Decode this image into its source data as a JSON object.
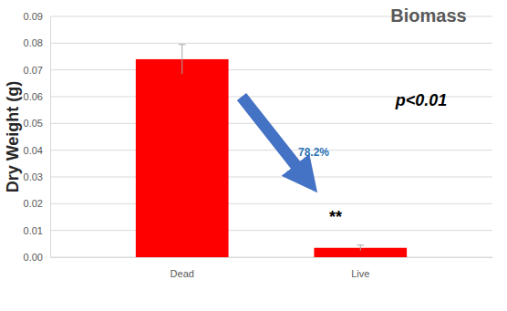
{
  "chart_data": {
    "type": "bar",
    "title": "Biomass",
    "y_label": "Dry Weight (g)",
    "categories": [
      "Dead",
      "Live"
    ],
    "values": [
      0.074,
      0.0035
    ],
    "errors": [
      0.0055,
      0.001
    ],
    "color": "#ff0000",
    "ylim": [
      0,
      0.09
    ],
    "yticks": [
      {
        "value": 0,
        "label": "0.00"
      },
      {
        "value": 0.01,
        "label": "0.01"
      },
      {
        "value": 0.02,
        "label": "0.02"
      },
      {
        "value": 0.03,
        "label": "0.03"
      },
      {
        "value": 0.04,
        "label": "0.04"
      },
      {
        "value": 0.05,
        "label": "0.05"
      },
      {
        "value": 0.06,
        "label": "0.06"
      },
      {
        "value": 0.07,
        "label": "0.07"
      },
      {
        "value": 0.08,
        "label": "0.08"
      },
      {
        "value": 0.09,
        "label": "0.09"
      }
    ],
    "annotations": [
      "78.2%",
      "p<0.01",
      "**"
    ],
    "grid": true
  }
}
